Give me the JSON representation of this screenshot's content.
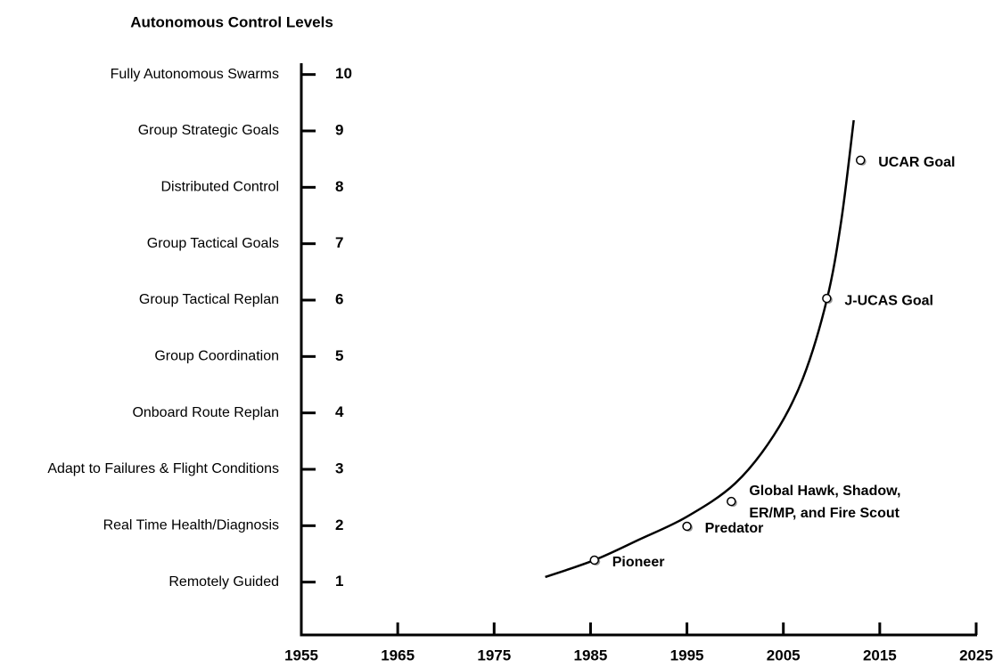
{
  "chart_data": {
    "type": "line",
    "title": "Autonomous Control Levels",
    "levels": [
      "Remotely Guided",
      "Real Time Health/Diagnosis",
      "Adapt to Failures & Flight Conditions",
      "Onboard Route Replan",
      "Group Coordination",
      "Group Tactical Replan",
      "Group Tactical Goals",
      "Distributed Control",
      "Group Strategic Goals",
      "Fully Autonomous Swarms"
    ],
    "xlim": [
      1955,
      2025
    ],
    "xticks": [
      1955,
      1965,
      1975,
      1985,
      1995,
      2005,
      2015,
      2025
    ],
    "ylim": [
      0,
      10.2
    ],
    "yticks": [
      1,
      2,
      3,
      4,
      5,
      6,
      7,
      8,
      9,
      10
    ],
    "series": [
      {
        "color": "#000000",
        "x": [
          1980.3,
          1985.4,
          1990,
          1995,
          2000,
          2004,
          2007,
          2009.5,
          2011,
          2012.3
        ],
        "values": [
          1.09,
          1.39,
          1.75,
          2.16,
          2.75,
          3.6,
          4.6,
          6.0,
          7.4,
          9.19
        ]
      }
    ],
    "points": {
      "x": [
        1985.4,
        1995.0,
        1999.6,
        2009.5,
        2013.0
      ],
      "values": [
        1.39,
        1.99,
        2.43,
        6.03,
        8.48
      ],
      "labels": [
        [
          "Pioneer"
        ],
        [
          "Predator"
        ],
        [
          "Global Hawk, Shadow,",
          "ER/MP, and Fire Scout"
        ],
        [
          "J-UCAS Goal"
        ],
        [
          "UCAR Goal"
        ]
      ]
    }
  }
}
